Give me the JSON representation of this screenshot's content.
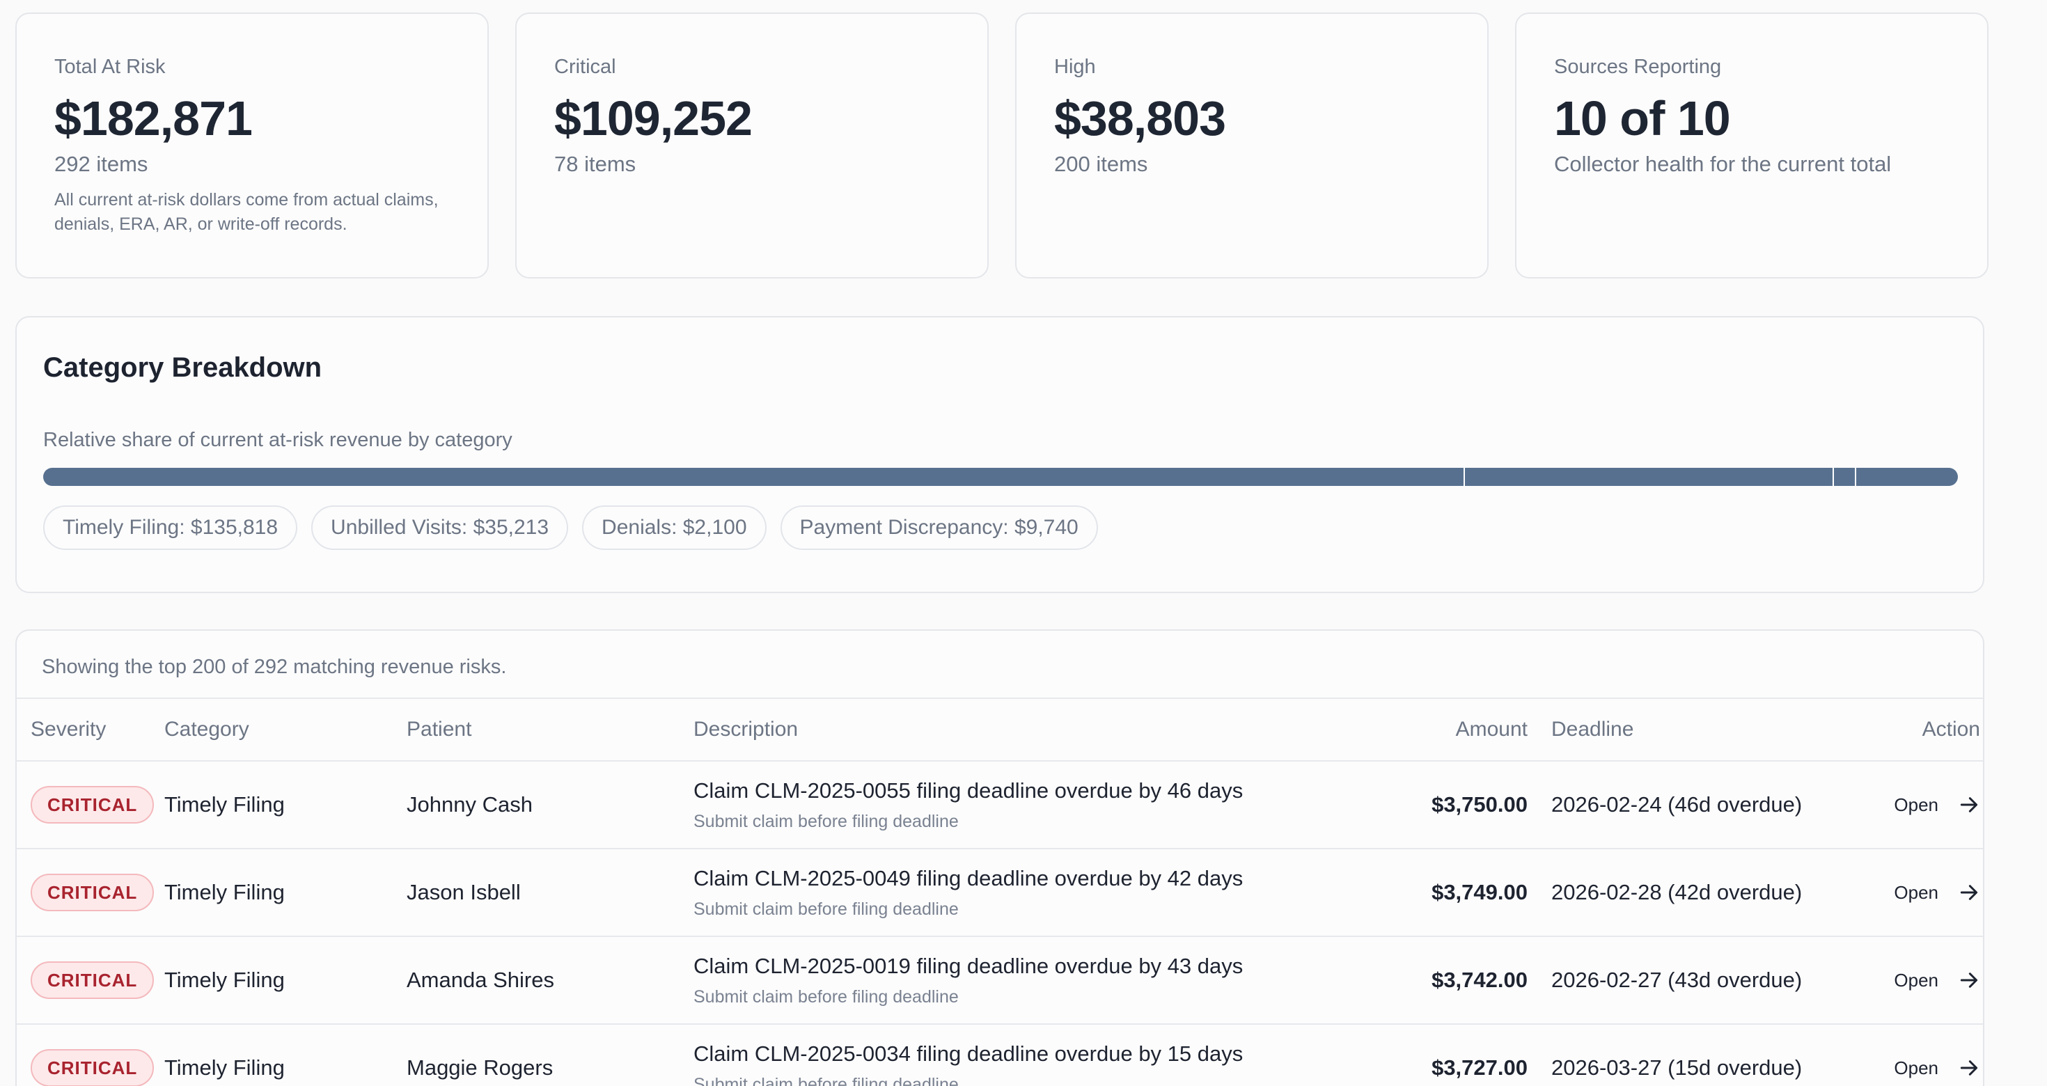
{
  "summary_cards": [
    {
      "label": "Total At Risk",
      "value": "$182,871",
      "sub": "292 items",
      "note": "All current at-risk dollars come from actual claims, denials, ERA, AR, or write-off records."
    },
    {
      "label": "Critical",
      "value": "$109,252",
      "sub": "78 items",
      "note": ""
    },
    {
      "label": "High",
      "value": "$38,803",
      "sub": "200 items",
      "note": ""
    },
    {
      "label": "Sources Reporting",
      "value": "10 of 10",
      "sub": "Collector health for the current total",
      "note": ""
    }
  ],
  "breakdown": {
    "title": "Category Breakdown",
    "subtitle": "Relative share of current at-risk revenue by category",
    "bar_color": "#57708f",
    "categories": [
      {
        "label": "Timely Filing: $135,818",
        "amount": 135818
      },
      {
        "label": "Unbilled Visits: $35,213",
        "amount": 35213
      },
      {
        "label": "Denials: $2,100",
        "amount": 2100
      },
      {
        "label": "Payment Discrepancy: $9,740",
        "amount": 9740
      }
    ]
  },
  "table": {
    "caption": "Showing the top 200 of 292 matching revenue risks.",
    "headers": {
      "severity": "Severity",
      "category": "Category",
      "patient": "Patient",
      "description": "Description",
      "amount": "Amount",
      "deadline": "Deadline",
      "action": "Action"
    },
    "rows": [
      {
        "severity": "CRITICAL",
        "category": "Timely Filing",
        "patient": "Johnny Cash",
        "desc_title": "Claim CLM-2025-0055 filing deadline overdue by 46 days",
        "desc_sub": "Submit claim before filing deadline",
        "amount": "$3,750.00",
        "deadline": "2026-02-24 (46d overdue)",
        "action": "Open"
      },
      {
        "severity": "CRITICAL",
        "category": "Timely Filing",
        "patient": "Jason Isbell",
        "desc_title": "Claim CLM-2025-0049 filing deadline overdue by 42 days",
        "desc_sub": "Submit claim before filing deadline",
        "amount": "$3,749.00",
        "deadline": "2026-02-28 (42d overdue)",
        "action": "Open"
      },
      {
        "severity": "CRITICAL",
        "category": "Timely Filing",
        "patient": "Amanda Shires",
        "desc_title": "Claim CLM-2025-0019 filing deadline overdue by 43 days",
        "desc_sub": "Submit claim before filing deadline",
        "amount": "$3,742.00",
        "deadline": "2026-02-27 (43d overdue)",
        "action": "Open"
      },
      {
        "severity": "CRITICAL",
        "category": "Timely Filing",
        "patient": "Maggie Rogers",
        "desc_title": "Claim CLM-2025-0034 filing deadline overdue by 15 days",
        "desc_sub": "Submit claim before filing deadline",
        "amount": "$3,727.00",
        "deadline": "2026-03-27 (15d overdue)",
        "action": "Open"
      }
    ]
  }
}
